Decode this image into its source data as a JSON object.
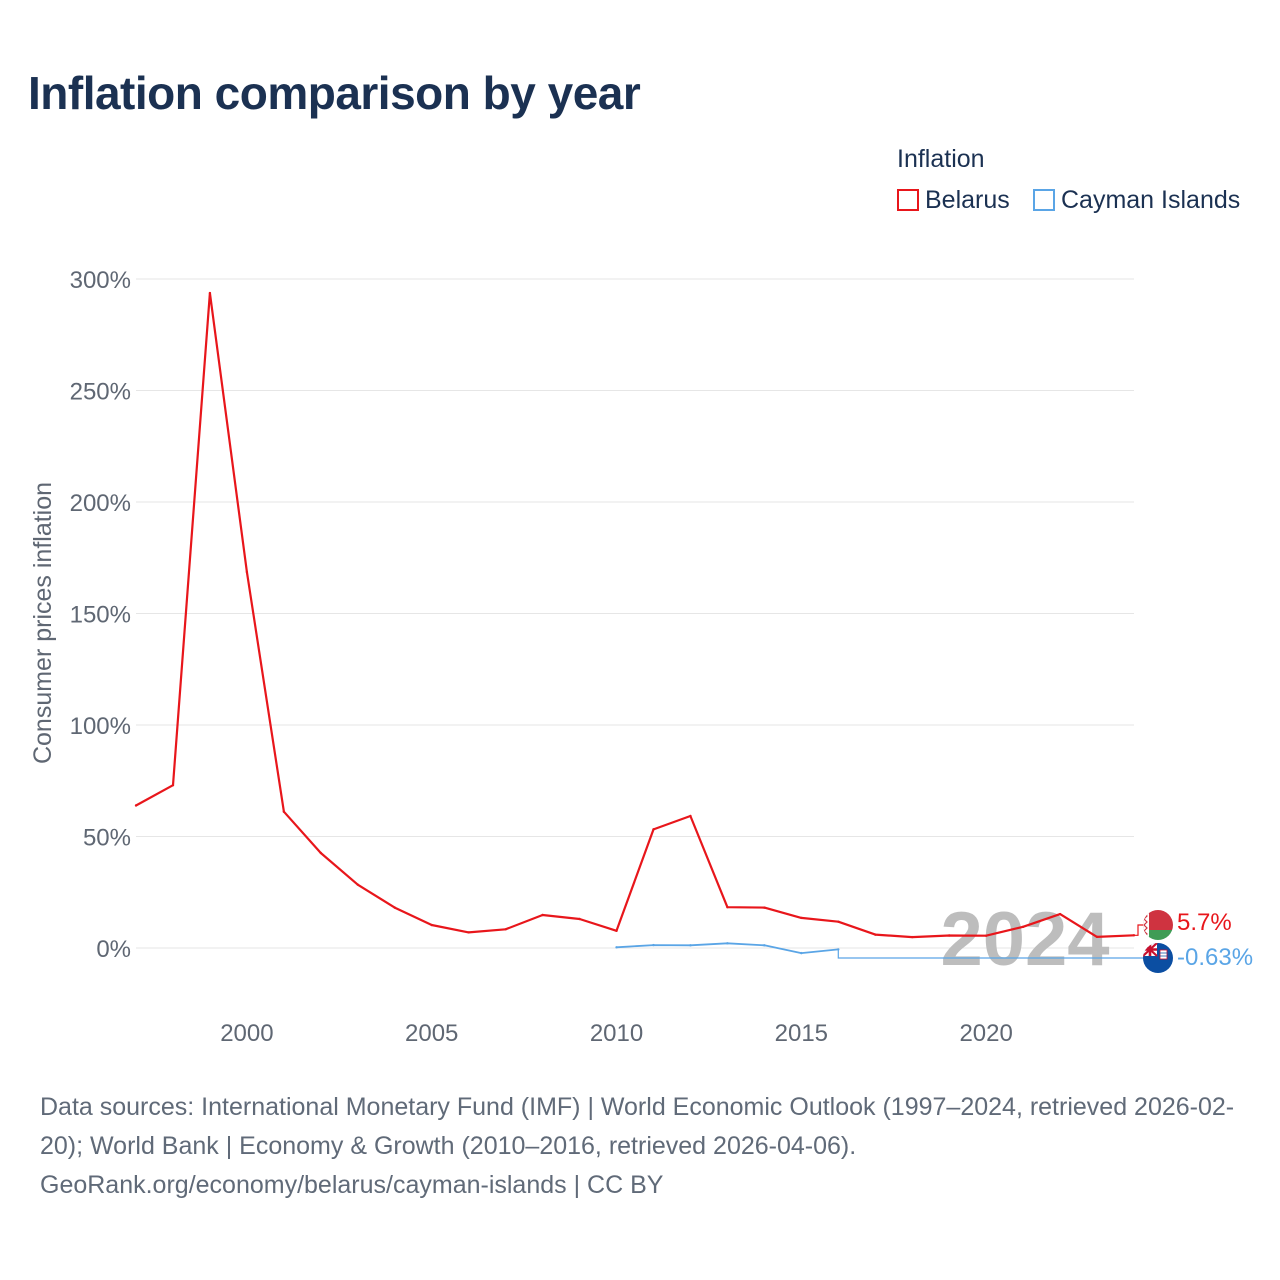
{
  "title": "Inflation comparison by year",
  "legend": {
    "title": "Inflation",
    "items": [
      {
        "label": "Belarus",
        "color": "#e8161b"
      },
      {
        "label": "Cayman Islands",
        "color": "#5aa5e6"
      }
    ]
  },
  "colors": {
    "belarus": "#e8161b",
    "cayman": "#5aa5e6",
    "grid": "#e6e6e6",
    "axis_text": "#5f6773",
    "year_watermark": "#bdbdbd"
  },
  "chart_data": {
    "type": "line",
    "title": "Inflation comparison by year",
    "xlabel": "",
    "ylabel": "Consumer prices inflation",
    "xlim": [
      1997,
      2024.3
    ],
    "ylim": [
      -20,
      310
    ],
    "x_ticks": [
      2000,
      2005,
      2010,
      2015,
      2020
    ],
    "y_ticks": [
      0,
      50,
      100,
      150,
      200,
      250,
      300
    ],
    "y_tick_labels": [
      "0%",
      "50%",
      "100%",
      "150%",
      "200%",
      "250%",
      "300%"
    ],
    "current_year": "2024",
    "series": [
      {
        "name": "Belarus",
        "color": "#e8161b",
        "end_label": "5.7%",
        "end_value": 5.7,
        "x": [
          1997,
          1998,
          1999,
          2000,
          2001,
          2002,
          2003,
          2004,
          2005,
          2006,
          2007,
          2008,
          2009,
          2010,
          2011,
          2012,
          2013,
          2014,
          2015,
          2016,
          2017,
          2018,
          2019,
          2020,
          2021,
          2022,
          2023,
          2024
        ],
        "y": [
          63.9,
          73.0,
          293.7,
          168.6,
          61.1,
          42.6,
          28.4,
          18.1,
          10.3,
          7.0,
          8.4,
          14.8,
          13.0,
          7.7,
          53.2,
          59.2,
          18.3,
          18.1,
          13.5,
          11.8,
          6.0,
          4.9,
          5.6,
          5.5,
          9.5,
          15.2,
          5.0,
          5.7
        ]
      },
      {
        "name": "Cayman Islands",
        "color": "#5aa5e6",
        "end_label": "-0.63%",
        "end_value": -0.63,
        "x": [
          2010,
          2011,
          2012,
          2013,
          2014,
          2015,
          2016
        ],
        "y": [
          0.3,
          1.3,
          1.2,
          2.1,
          1.2,
          -2.3,
          -0.63
        ]
      }
    ]
  },
  "footer": {
    "sources": "Data sources: International Monetary Fund (IMF) | World Economic Outlook (1997–2024, retrieved 2026-02-20); World Bank | Economy & Growth (2010–2016, retrieved 2026-04-06).",
    "credit": "GeoRank.org/economy/belarus/cayman-islands | CC BY"
  }
}
